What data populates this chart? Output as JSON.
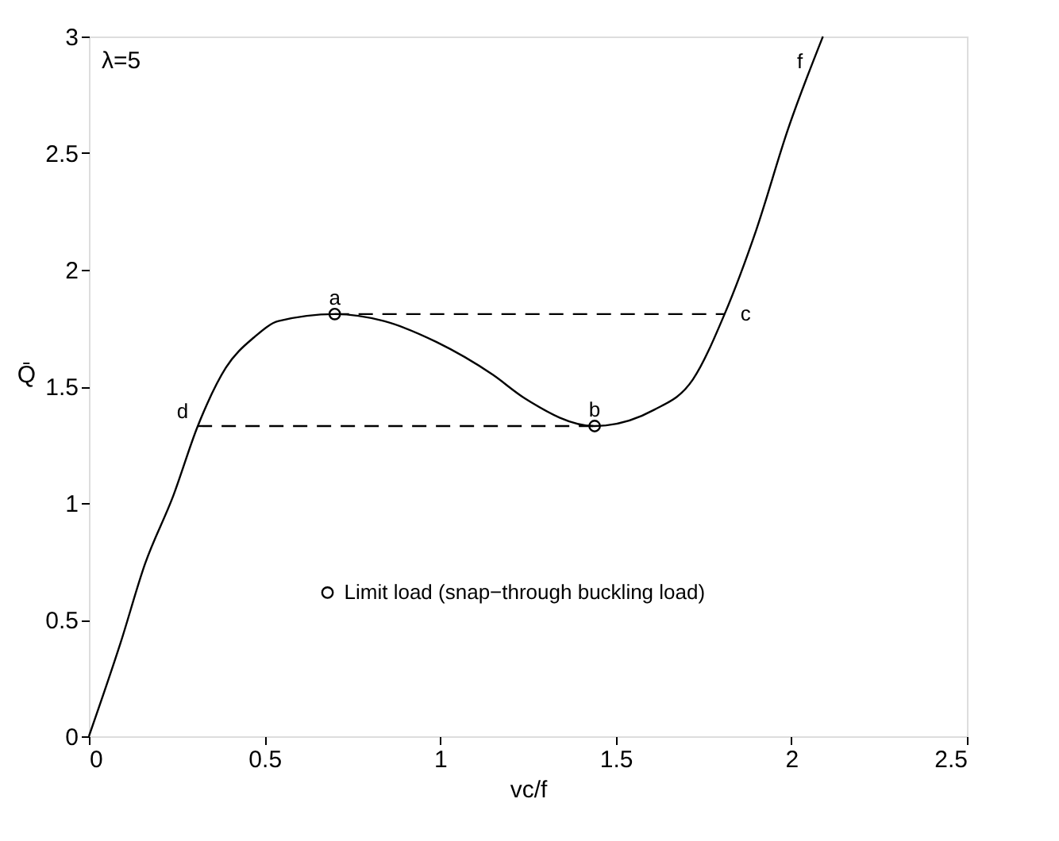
{
  "chart_data": {
    "type": "line",
    "xlabel": "vc/f",
    "ylabel": "Q̄",
    "xlim": [
      0,
      2.5
    ],
    "ylim": [
      0,
      3
    ],
    "xticks": [
      0,
      0.5,
      1,
      1.5,
      2,
      2.5
    ],
    "yticks": [
      0,
      0.5,
      1,
      1.5,
      2,
      2.5,
      3
    ],
    "grid": false,
    "legend": "bottom",
    "series": [
      {
        "color": "#000000",
        "line_style": "solid",
        "x": [
          0,
          0.09,
          0.16,
          0.24,
          0.31,
          0.39,
          0.47,
          0.54,
          0.7,
          0.84,
          0.99,
          1.15,
          1.24,
          1.44,
          1.61,
          1.72,
          1.81,
          1.9,
          1.99,
          2.09
        ],
        "values": [
          0,
          0.4,
          0.74,
          1.03,
          1.33,
          1.58,
          1.71,
          1.78,
          1.81,
          1.78,
          1.69,
          1.55,
          1.45,
          1.33,
          1.4,
          1.53,
          1.81,
          2.17,
          2.6,
          3.0
        ]
      },
      {
        "color": "#000000",
        "line_style": "dashed",
        "x": [
          0.7,
          1.81
        ],
        "values": [
          1.81,
          1.81
        ]
      },
      {
        "color": "#000000",
        "line_style": "dashed",
        "x": [
          0.31,
          1.44
        ],
        "values": [
          1.33,
          1.33
        ]
      },
      {
        "type": "scatter",
        "name": "Limit load (snap−through buckling load)",
        "color": "#000000",
        "marker": "circle",
        "x": [
          0.7,
          1.44
        ],
        "values": [
          1.81,
          1.33
        ]
      }
    ],
    "annotations": [
      "λ=5",
      {
        "text": "a",
        "x": 0.7,
        "y": 1.81
      },
      {
        "text": "b",
        "x": 1.44,
        "y": 1.33
      },
      {
        "text": "c",
        "x": 1.81,
        "y": 1.81
      },
      {
        "text": "d",
        "x": 0.31,
        "y": 1.33
      },
      {
        "text": "f",
        "x": 2.06,
        "y": 2.89
      }
    ]
  }
}
